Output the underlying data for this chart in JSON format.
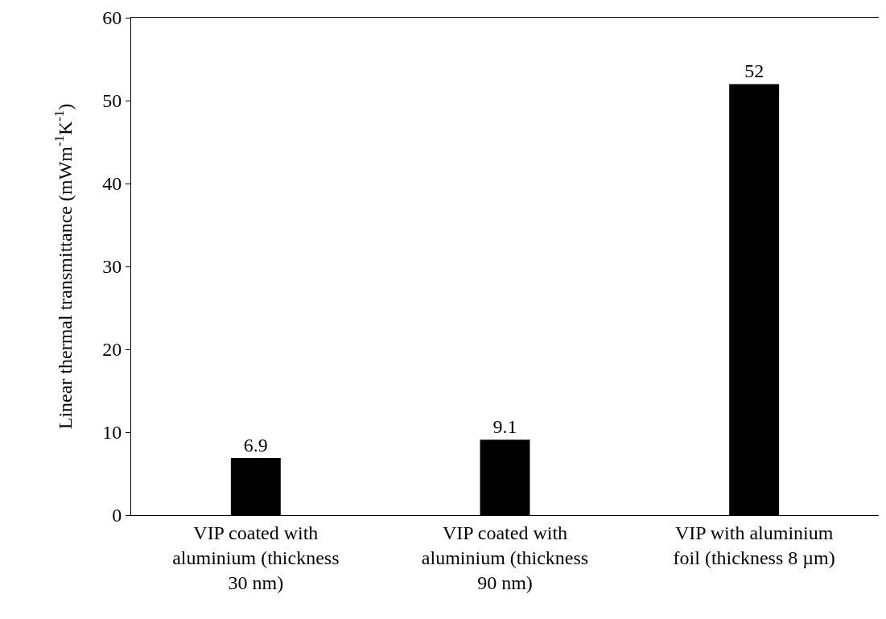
{
  "chart_data": {
    "type": "bar",
    "ylabel": "Linear thermal transmittance (mWm$^{-1}$K$^{-1}$)",
    "categories": [
      "VIP coated with\naluminium (thickness\n30 nm)",
      "VIP coated with\naluminium (thickness\n90 nm)",
      "VIP with aluminium\nfoil (thickness 8 µm)"
    ],
    "values": [
      6.9,
      9.1,
      52
    ],
    "color": "#000000",
    "ylim": [
      0,
      60
    ],
    "yticks": [
      0,
      10,
      20,
      30,
      40,
      50,
      60
    ],
    "data_labels": true,
    "grid": false
  }
}
